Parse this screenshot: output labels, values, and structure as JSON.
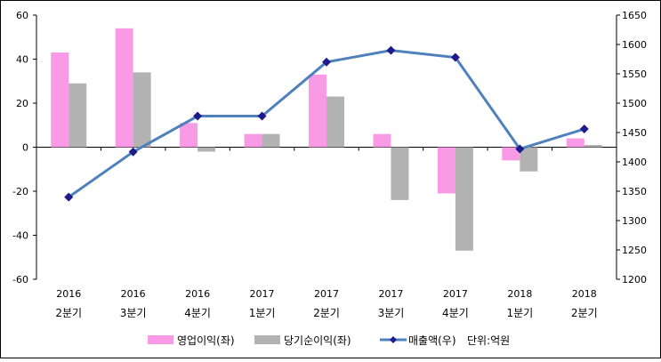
{
  "chart_data": {
    "type": "bar",
    "title": "",
    "unit_note": "단위:억원",
    "categories": [
      {
        "year": "2016",
        "quarter": "2분기"
      },
      {
        "year": "2016",
        "quarter": "3분기"
      },
      {
        "year": "2016",
        "quarter": "4분기"
      },
      {
        "year": "2017",
        "quarter": "1분기"
      },
      {
        "year": "2017",
        "quarter": "2분기"
      },
      {
        "year": "2017",
        "quarter": "3분기"
      },
      {
        "year": "2017",
        "quarter": "4분기"
      },
      {
        "year": "2018",
        "quarter": "1분기"
      },
      {
        "year": "2018",
        "quarter": "2분기"
      }
    ],
    "series": [
      {
        "name": "영업이익(좌)",
        "type": "bar",
        "axis": "left",
        "color": "#f89ae6",
        "values": [
          43,
          54,
          11,
          6,
          33,
          6,
          -21,
          -6,
          4
        ]
      },
      {
        "name": "당기순이익(좌)",
        "type": "bar",
        "axis": "left",
        "color": "#b2b2b2",
        "values": [
          29,
          34,
          -2,
          6,
          23,
          -24,
          -47,
          -11,
          1
        ]
      },
      {
        "name": "매출액(우)",
        "type": "line",
        "axis": "right",
        "color": "#4f81bd",
        "marker_color": "#1f1a8c",
        "values": [
          1340,
          1417,
          1478,
          1478,
          1570,
          1590,
          1578,
          1422,
          1456
        ]
      }
    ],
    "y_left": {
      "min": -60,
      "max": 60,
      "step": 20,
      "ticks": [
        "-60",
        "-40",
        "-20",
        "0",
        "20",
        "40",
        "60"
      ]
    },
    "y_right": {
      "min": 1200,
      "max": 1650,
      "step": 50,
      "ticks": [
        "1200",
        "1250",
        "1300",
        "1350",
        "1400",
        "1450",
        "1500",
        "1550",
        "1600",
        "1650"
      ]
    },
    "legend_position": "bottom",
    "grid": false
  }
}
